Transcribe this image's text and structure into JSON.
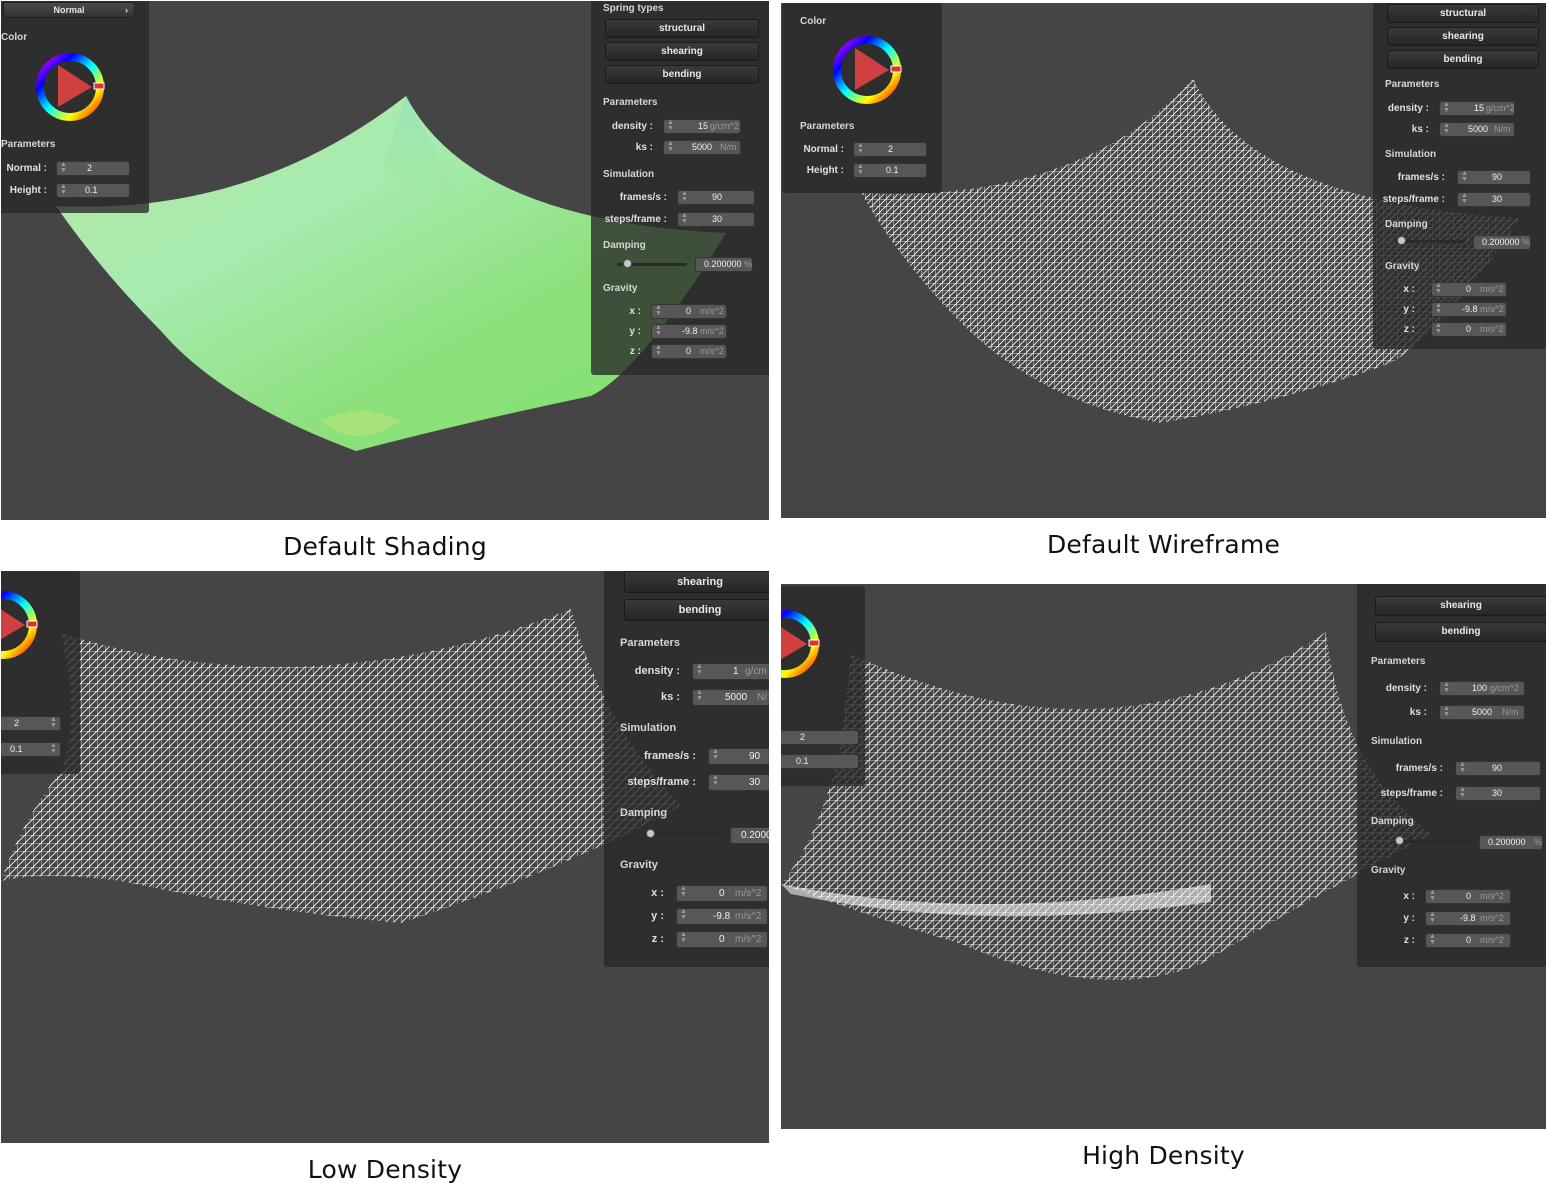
{
  "panels": [
    {
      "caption": "Default Shading",
      "left_panel": {
        "mode_dropdown": "Normal",
        "color_title": "Color",
        "params_title": "Parameters",
        "normal_label": "Normal :",
        "normal_value": "2",
        "height_label": "Height :",
        "height_value": "0.1"
      },
      "right_panel": {
        "spring_title": "Spring types",
        "structural": "structural",
        "shearing": "shearing",
        "bending": "bending",
        "params_title": "Parameters",
        "density_label": "density :",
        "density_value": "15",
        "density_unit": "g/cm^2",
        "ks_label": "ks :",
        "ks_value": "5000",
        "ks_unit": "N/m",
        "sim_title": "Simulation",
        "fps_label": "frames/s :",
        "fps_value": "90",
        "spf_label": "steps/frame :",
        "spf_value": "30",
        "damping_title": "Damping",
        "damping_value": "0.200000",
        "damping_unit": "%",
        "gravity_title": "Gravity",
        "gx_label": "x :",
        "gx_value": "0",
        "gy_label": "y :",
        "gy_value": "-9.8",
        "gz_label": "z :",
        "gz_value": "0",
        "g_unit": "m/s^2"
      }
    },
    {
      "caption": "Default Wireframe",
      "left_panel": {
        "color_title": "Color",
        "params_title": "Parameters",
        "normal_label": "Normal :",
        "normal_value": "2",
        "height_label": "Height :",
        "height_value": "0.1"
      },
      "right_panel": {
        "structural": "structural",
        "shearing": "shearing",
        "bending": "bending",
        "params_title": "Parameters",
        "density_label": "density :",
        "density_value": "15",
        "density_unit": "g/cm^2",
        "ks_label": "ks :",
        "ks_value": "5000",
        "ks_unit": "N/m",
        "sim_title": "Simulation",
        "fps_label": "frames/s :",
        "fps_value": "90",
        "spf_label": "steps/frame :",
        "spf_value": "30",
        "damping_title": "Damping",
        "damping_value": "0.200000",
        "damping_unit": "%",
        "gravity_title": "Gravity",
        "gx_label": "x :",
        "gx_value": "0",
        "gy_label": "y :",
        "gy_value": "-9.8",
        "gz_label": "z :",
        "gz_value": "0",
        "g_unit": "m/s^2"
      }
    },
    {
      "caption": "Low Density",
      "left_panel": {
        "normal_value": "2",
        "height_value": "0.1"
      },
      "right_panel": {
        "shearing": "shearing",
        "bending": "bending",
        "params_title": "Parameters",
        "density_label": "density :",
        "density_value": "1",
        "density_unit": "g/cm",
        "ks_label": "ks :",
        "ks_value": "5000",
        "ks_unit": "N/",
        "sim_title": "Simulation",
        "fps_label": "frames/s :",
        "fps_value": "90",
        "spf_label": "steps/frame :",
        "spf_value": "30",
        "damping_title": "Damping",
        "damping_value": "0.2000",
        "gravity_title": "Gravity",
        "gx_label": "x :",
        "gx_value": "0",
        "gy_label": "y :",
        "gy_value": "-9.8",
        "gz_label": "z :",
        "gz_value": "0",
        "g_unit": "m/s^2"
      }
    },
    {
      "caption": "High Density",
      "left_panel": {
        "normal_value": "2",
        "height_value": "0.1"
      },
      "right_panel": {
        "shearing": "shearing",
        "bending": "bending",
        "params_title": "Parameters",
        "density_label": "density :",
        "density_value": "100",
        "density_unit": "g/cm^2",
        "ks_label": "ks :",
        "ks_value": "5000",
        "ks_unit": "N/m",
        "sim_title": "Simulation",
        "fps_label": "frames/s :",
        "fps_value": "90",
        "spf_label": "steps/frame :",
        "spf_value": "30",
        "damping_title": "Damping",
        "damping_value": "0.200000",
        "damping_unit": "%",
        "gravity_title": "Gravity",
        "gx_label": "x :",
        "gx_value": "0",
        "gy_label": "y :",
        "gy_value": "-9.8",
        "gz_label": "z :",
        "gz_value": "0",
        "g_unit": "m/s^2"
      }
    }
  ],
  "colors": {
    "viewport_bg": "#454545",
    "cloth_green": "#8fe07a",
    "wire": "#ffffff"
  }
}
